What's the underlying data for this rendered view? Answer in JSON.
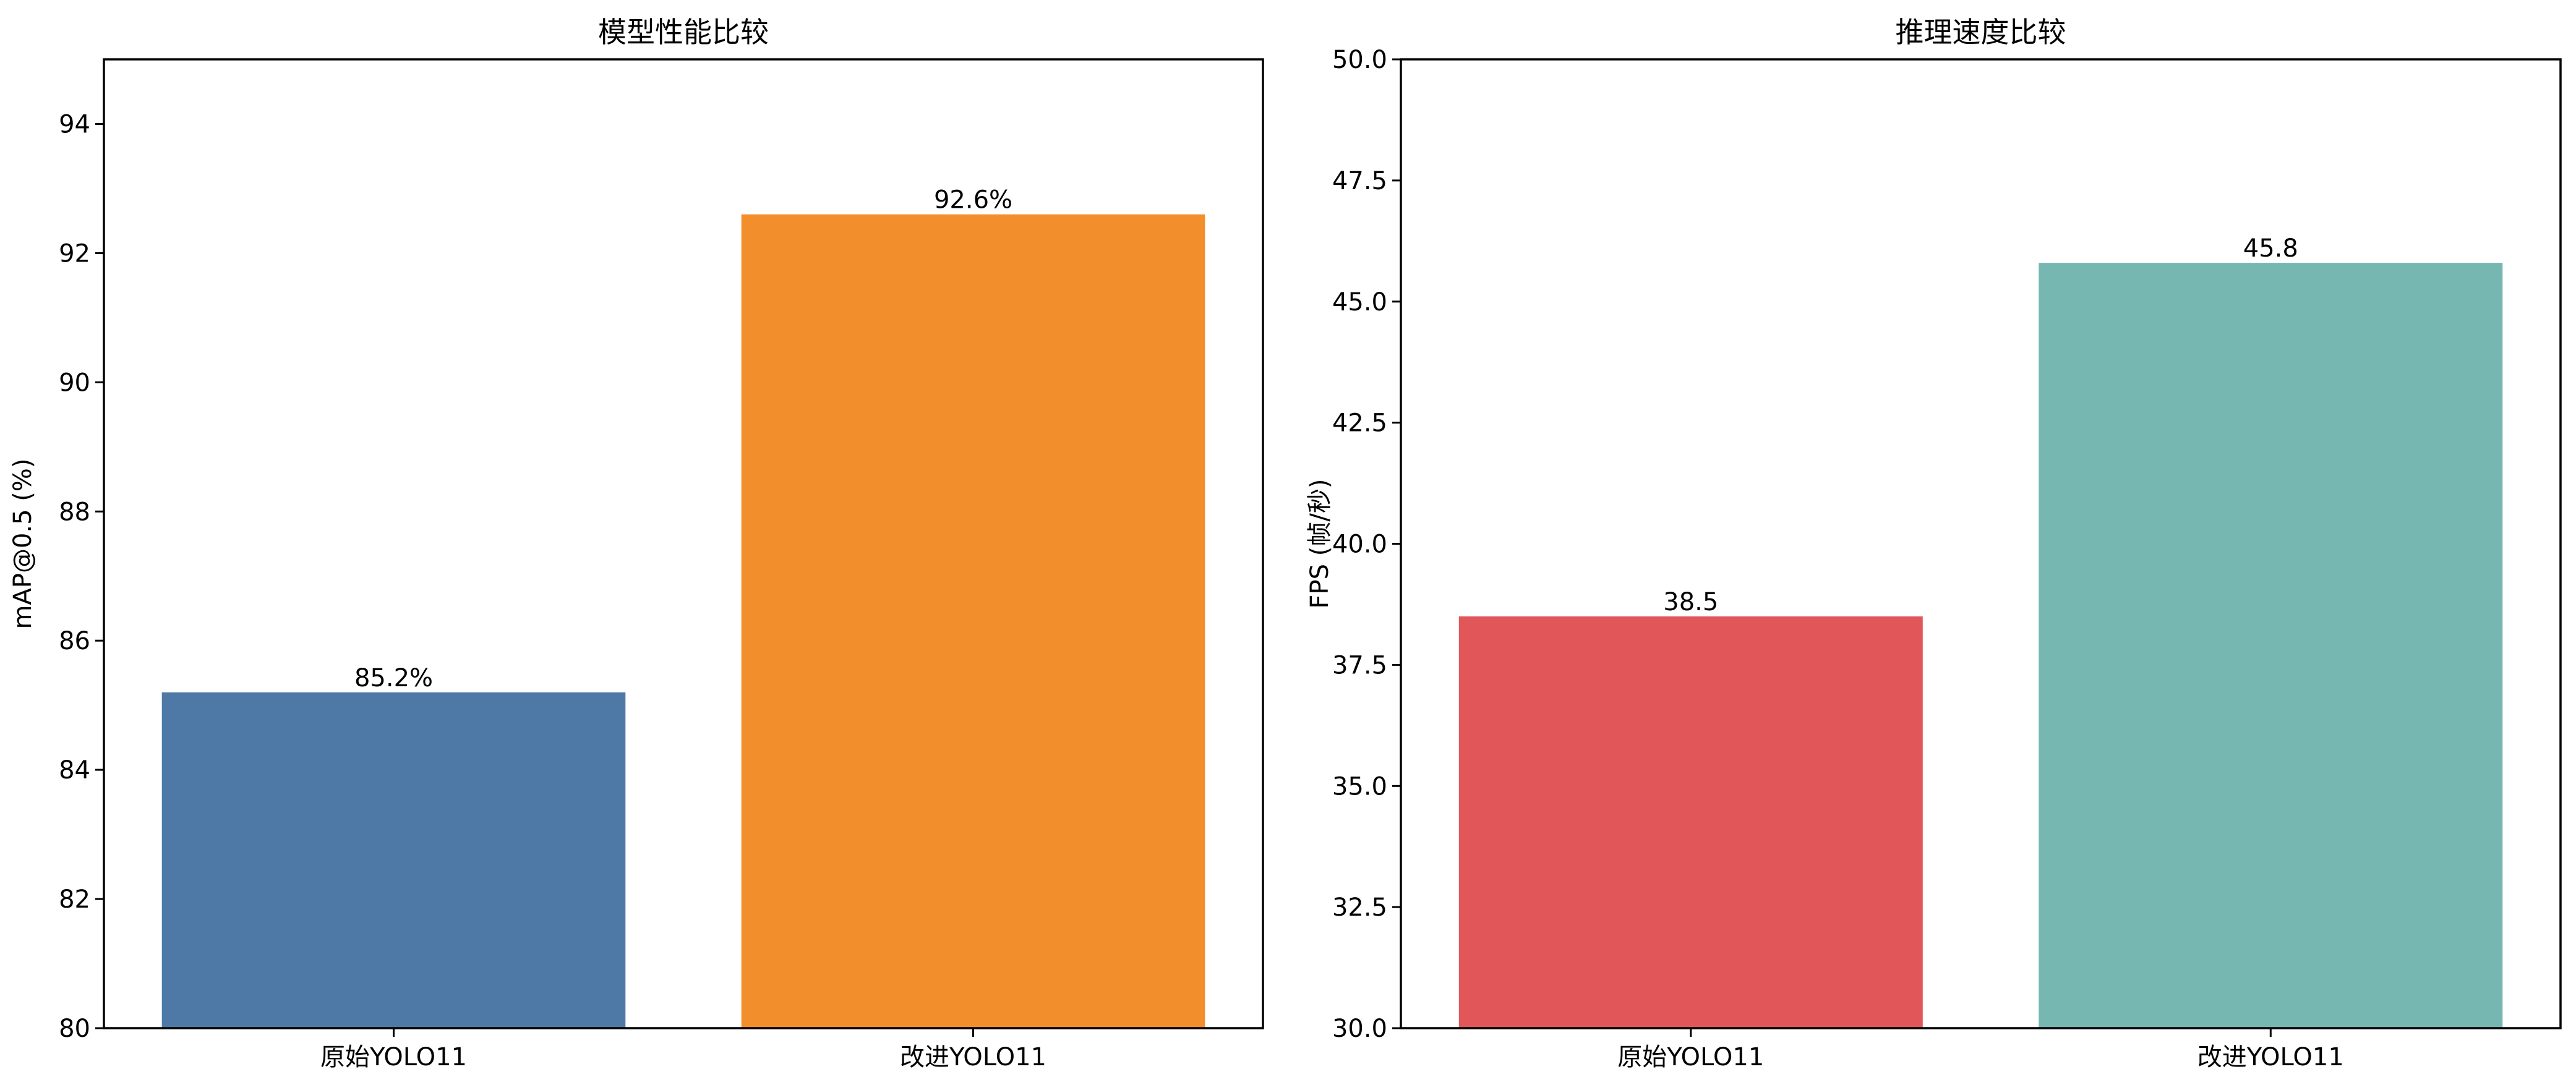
{
  "chart_data": [
    {
      "type": "bar",
      "title": "模型性能比较",
      "xlabel": "",
      "ylabel": "mAP@0.5 (%)",
      "categories": [
        "原始YOLO11",
        "改进YOLO11"
      ],
      "values": [
        85.2,
        92.6
      ],
      "value_labels": [
        "85.2%",
        "92.6%"
      ],
      "colors": [
        "#4e79a7",
        "#f28e2b"
      ],
      "ylim": [
        80,
        95
      ],
      "yticks": [
        80,
        82,
        84,
        86,
        88,
        90,
        92,
        94
      ],
      "ytick_labels": [
        "80",
        "82",
        "84",
        "86",
        "88",
        "90",
        "92",
        "94"
      ],
      "grid": false,
      "legend": "none"
    },
    {
      "type": "bar",
      "title": "推理速度比较",
      "xlabel": "",
      "ylabel": "FPS (帧/秒)",
      "categories": [
        "原始YOLO11",
        "改进YOLO11"
      ],
      "values": [
        38.5,
        45.8
      ],
      "value_labels": [
        "38.5",
        "45.8"
      ],
      "colors": [
        "#e15759",
        "#76b7b2"
      ],
      "ylim": [
        30,
        50
      ],
      "yticks": [
        30,
        32.5,
        35,
        37.5,
        40,
        42.5,
        45,
        47.5,
        50
      ],
      "ytick_labels": [
        "30.0",
        "32.5",
        "35.0",
        "37.5",
        "40.0",
        "42.5",
        "45.0",
        "47.5",
        "50.0"
      ],
      "grid": false,
      "legend": "none"
    }
  ]
}
